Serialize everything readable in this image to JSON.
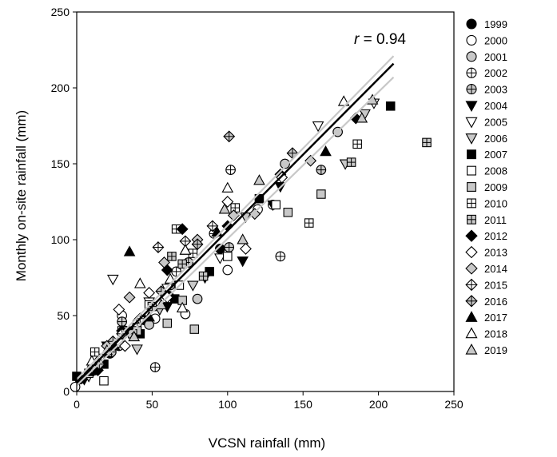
{
  "chart_data": {
    "type": "scatter",
    "xlabel": "VCSN rainfall (mm)",
    "ylabel": "Monthly on-site rainfall (mm)",
    "xlim": [
      0,
      250
    ],
    "ylim": [
      0,
      250
    ],
    "xticks": [
      "0",
      "50",
      "100",
      "150",
      "200",
      "250"
    ],
    "yticks": [
      "0",
      "50",
      "100",
      "150",
      "200",
      "250"
    ],
    "grid": false,
    "legend_position": "right",
    "annotation": {
      "italic": "r",
      "text": " = 0.94"
    },
    "regression": {
      "slope": 1.0,
      "intercept": 6,
      "x_range": [
        0,
        210
      ],
      "color": "#000000"
    },
    "confidence_band": {
      "color": "#c8c8c8",
      "lower": [
        [
          0,
          4
        ],
        [
          210,
          207
        ]
      ],
      "upper": [
        [
          0,
          8
        ],
        [
          210,
          221
        ]
      ]
    },
    "series": [
      {
        "name": "1999",
        "marker": "circle",
        "fill": "#000000",
        "points": [
          [
            2,
            8
          ],
          [
            12,
            14
          ],
          [
            22,
            25
          ],
          [
            32,
            40
          ],
          [
            45,
            47
          ],
          [
            61,
            63
          ],
          [
            95,
            94
          ]
        ]
      },
      {
        "name": "2000",
        "marker": "circle",
        "fill": "#ffffff",
        "points": [
          [
            -1,
            3
          ],
          [
            15,
            20
          ],
          [
            30,
            50
          ],
          [
            52,
            48
          ],
          [
            72,
            51
          ],
          [
            120,
            120
          ],
          [
            100,
            80
          ]
        ]
      },
      {
        "name": "2001",
        "marker": "circle",
        "fill": "#c8c8c8",
        "points": [
          [
            10,
            15
          ],
          [
            28,
            30
          ],
          [
            48,
            44
          ],
          [
            80,
            61
          ],
          [
            138,
            150
          ],
          [
            173,
            171
          ]
        ]
      },
      {
        "name": "2002",
        "marker": "circle-plus",
        "fill": "#ffffff",
        "points": [
          [
            52,
            16
          ],
          [
            135,
            89
          ],
          [
            102,
            146
          ],
          [
            91,
            104
          ],
          [
            66,
            79
          ],
          [
            40,
            45
          ],
          [
            130,
            123
          ]
        ]
      },
      {
        "name": "2003",
        "marker": "circle-plus",
        "fill": "#c8c8c8",
        "points": [
          [
            30,
            46
          ],
          [
            62,
            70
          ],
          [
            101,
            95
          ],
          [
            162,
            146
          ],
          [
            23,
            26
          ],
          [
            74,
            85
          ]
        ]
      },
      {
        "name": "2004",
        "marker": "triangle-down",
        "fill": "#000000",
        "points": [
          [
            5,
            8
          ],
          [
            20,
            30
          ],
          [
            38,
            40
          ],
          [
            60,
            56
          ],
          [
            85,
            75
          ],
          [
            110,
            86
          ],
          [
            130,
            123
          ],
          [
            135,
            135
          ]
        ]
      },
      {
        "name": "2005",
        "marker": "triangle-down",
        "fill": "#ffffff",
        "points": [
          [
            24,
            74
          ],
          [
            60,
            68
          ],
          [
            95,
            88
          ],
          [
            160,
            175
          ],
          [
            197,
            190
          ],
          [
            48,
            59
          ],
          [
            16,
            22
          ]
        ]
      },
      {
        "name": "2006",
        "marker": "triangle-down",
        "fill": "#c8c8c8",
        "points": [
          [
            8,
            10
          ],
          [
            40,
            28
          ],
          [
            77,
            70
          ],
          [
            112,
            115
          ],
          [
            178,
            150
          ],
          [
            191,
            183
          ],
          [
            55,
            54
          ]
        ]
      },
      {
        "name": "2007",
        "marker": "square",
        "fill": "#000000",
        "points": [
          [
            0,
            10
          ],
          [
            18,
            18
          ],
          [
            42,
            38
          ],
          [
            65,
            61
          ],
          [
            88,
            79
          ],
          [
            121,
            127
          ],
          [
            208,
            188
          ]
        ]
      },
      {
        "name": "2008",
        "marker": "square",
        "fill": "#ffffff",
        "points": [
          [
            8,
            12
          ],
          [
            18,
            7
          ],
          [
            28,
            32
          ],
          [
            48,
            57
          ],
          [
            68,
            70
          ],
          [
            100,
            89
          ],
          [
            132,
            123
          ]
        ]
      },
      {
        "name": "2009",
        "marker": "square",
        "fill": "#c8c8c8",
        "points": [
          [
            78,
            41
          ],
          [
            60,
            45
          ],
          [
            40,
            40
          ],
          [
            70,
            60
          ],
          [
            140,
            118
          ],
          [
            162,
            130
          ]
        ]
      },
      {
        "name": "2010",
        "marker": "square-plus",
        "fill": "#ffffff",
        "points": [
          [
            186,
            163
          ],
          [
            154,
            111
          ],
          [
            66,
            107
          ],
          [
            77,
            91
          ],
          [
            105,
            121
          ],
          [
            30,
            40
          ],
          [
            12,
            26
          ]
        ]
      },
      {
        "name": "2011",
        "marker": "square-plus",
        "fill": "#c8c8c8",
        "points": [
          [
            232,
            164
          ],
          [
            182,
            151
          ],
          [
            63,
            89
          ],
          [
            70,
            84
          ],
          [
            50,
            56
          ],
          [
            84,
            76
          ],
          [
            37,
            38
          ]
        ]
      },
      {
        "name": "2012",
        "marker": "diamond",
        "fill": "#000000",
        "points": [
          [
            185,
            180
          ],
          [
            70,
            107
          ],
          [
            100,
            109
          ],
          [
            30,
            40
          ],
          [
            60,
            80
          ],
          [
            135,
            143
          ],
          [
            14,
            14
          ]
        ]
      },
      {
        "name": "2013",
        "marker": "diamond",
        "fill": "#ffffff",
        "points": [
          [
            100,
            125
          ],
          [
            112,
            94
          ],
          [
            136,
            141
          ],
          [
            48,
            65
          ],
          [
            28,
            54
          ],
          [
            60,
            62
          ],
          [
            32,
            30
          ]
        ]
      },
      {
        "name": "2014",
        "marker": "diamond",
        "fill": "#c8c8c8",
        "points": [
          [
            35,
            62
          ],
          [
            58,
            85
          ],
          [
            80,
            100
          ],
          [
            118,
            117
          ],
          [
            155,
            152
          ],
          [
            20,
            30
          ],
          [
            104,
            116
          ]
        ]
      },
      {
        "name": "2015",
        "marker": "diamond-plus",
        "fill": "#ffffff",
        "points": [
          [
            54,
            95
          ],
          [
            72,
            99
          ],
          [
            42,
            48
          ],
          [
            30,
            38
          ],
          [
            90,
            109
          ]
        ]
      },
      {
        "name": "2016",
        "marker": "diamond-plus",
        "fill": "#c8c8c8",
        "points": [
          [
            101,
            168
          ],
          [
            143,
            157
          ],
          [
            80,
            97
          ],
          [
            56,
            66
          ],
          [
            24,
            33
          ],
          [
            15,
            18
          ]
        ]
      },
      {
        "name": "2017",
        "marker": "triangle-up",
        "fill": "#000000",
        "points": [
          [
            35,
            92
          ],
          [
            93,
            105
          ],
          [
            72,
            93
          ],
          [
            48,
            49
          ],
          [
            165,
            158
          ],
          [
            8,
            13
          ],
          [
            25,
            30
          ]
        ]
      },
      {
        "name": "2018",
        "marker": "triangle-up",
        "fill": "#ffffff",
        "points": [
          [
            42,
            71
          ],
          [
            62,
            74
          ],
          [
            72,
            93
          ],
          [
            100,
            134
          ],
          [
            177,
            191
          ],
          [
            70,
            55
          ],
          [
            10,
            20
          ]
        ]
      },
      {
        "name": "2019",
        "marker": "triangle-up",
        "fill": "#c8c8c8",
        "points": [
          [
            98,
            120
          ],
          [
            121,
            139
          ],
          [
            189,
            180
          ],
          [
            196,
            192
          ],
          [
            56,
            57
          ],
          [
            38,
            36
          ],
          [
            110,
            100
          ],
          [
            20,
            27
          ]
        ]
      }
    ]
  }
}
